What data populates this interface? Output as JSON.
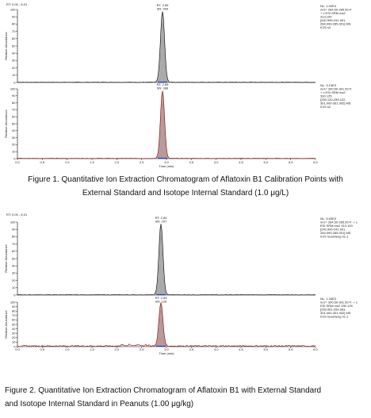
{
  "figures": [
    {
      "range": "RT: 0.00 - 6.01",
      "y_axis_label": "Relative Abundance",
      "yticks": [
        "0",
        "10",
        "20",
        "30",
        "40",
        "50",
        "60",
        "70",
        "80",
        "90",
        "100"
      ],
      "xticks": [
        "0.0",
        "0.5",
        "1.0",
        "1.5",
        "2.0",
        "2.5",
        "3.0",
        "3.5",
        "4.0",
        "4.5",
        "5.0",
        "5.5",
        "6.0"
      ],
      "x_axis_label": "Time (min)",
      "panels": [
        {
          "peak_label": [
            "RT: 2.89",
            "SN: 409"
          ],
          "info": [
            "NL: 1.02E4",
            "m/z= 284.50-285.50 F:",
            "+ c ESI SRM ms2",
            "313.100",
            "[240.999-241.001,",
            "284.999-285.001] MS",
            "ICIS s2"
          ]
        },
        {
          "peak_label": [
            "RT: 2.89",
            "SN: 388"
          ],
          "info": [
            "NL: 3.15E3",
            "m/z= 300.50-301.50 F:",
            "+ c ESI SRM ms2",
            "330.125",
            "[259.120-259.122,",
            "301.000-301.002] MS",
            "ICIS s2"
          ]
        }
      ],
      "caption": [
        "Figure 1. Quantitative Ion Extraction Chromatogram of Aflatoxin B1 Calibration Points with",
        "External Standard and Isotope Internal Standard (1.0 μg/L)"
      ]
    },
    {
      "range": "RT: 0.00 - 6.01",
      "y_axis_label": "Relative Abundance",
      "yticks": [
        "0",
        "10",
        "20",
        "30",
        "40",
        "50",
        "60",
        "70",
        "80",
        "90",
        "100"
      ],
      "xticks": [
        "0.0",
        "0.5",
        "1.0",
        "1.5",
        "2.0",
        "2.5",
        "3.0",
        "3.5",
        "4.0",
        "4.5",
        "5.0",
        "5.5",
        "6.0"
      ],
      "x_axis_label": "Time (min)",
      "panels": [
        {
          "peak_label": [
            "RT: 2.84",
            "SN: 297"
          ],
          "info": [
            "NL: 5.63E3",
            "m/z= 284.50-285.50 F: + c",
            "ESI SRM ms2 313.100",
            "[240.999-241.001,",
            "284.999-285.001] MS",
            "ICIS huasheng hz-1"
          ]
        },
        {
          "peak_label": [
            "RT: 2.83",
            "SN: 126"
          ],
          "info": [
            "NL: 1.34E3",
            "m/z= 300.50-301.50 F: + c",
            "ESI SRM ms2 330.125",
            "[259.061-259.063,",
            "301.000-301.002] MS",
            "ICIS huasheng hz-1"
          ]
        }
      ],
      "caption": [
        "Figure 2. Quantitative Ion Extraction Chromatogram of Aflatoxin B1 with External Standard",
        "and Isotope Internal Standard in Peanuts (1.00 μg/kg)"
      ]
    }
  ]
}
